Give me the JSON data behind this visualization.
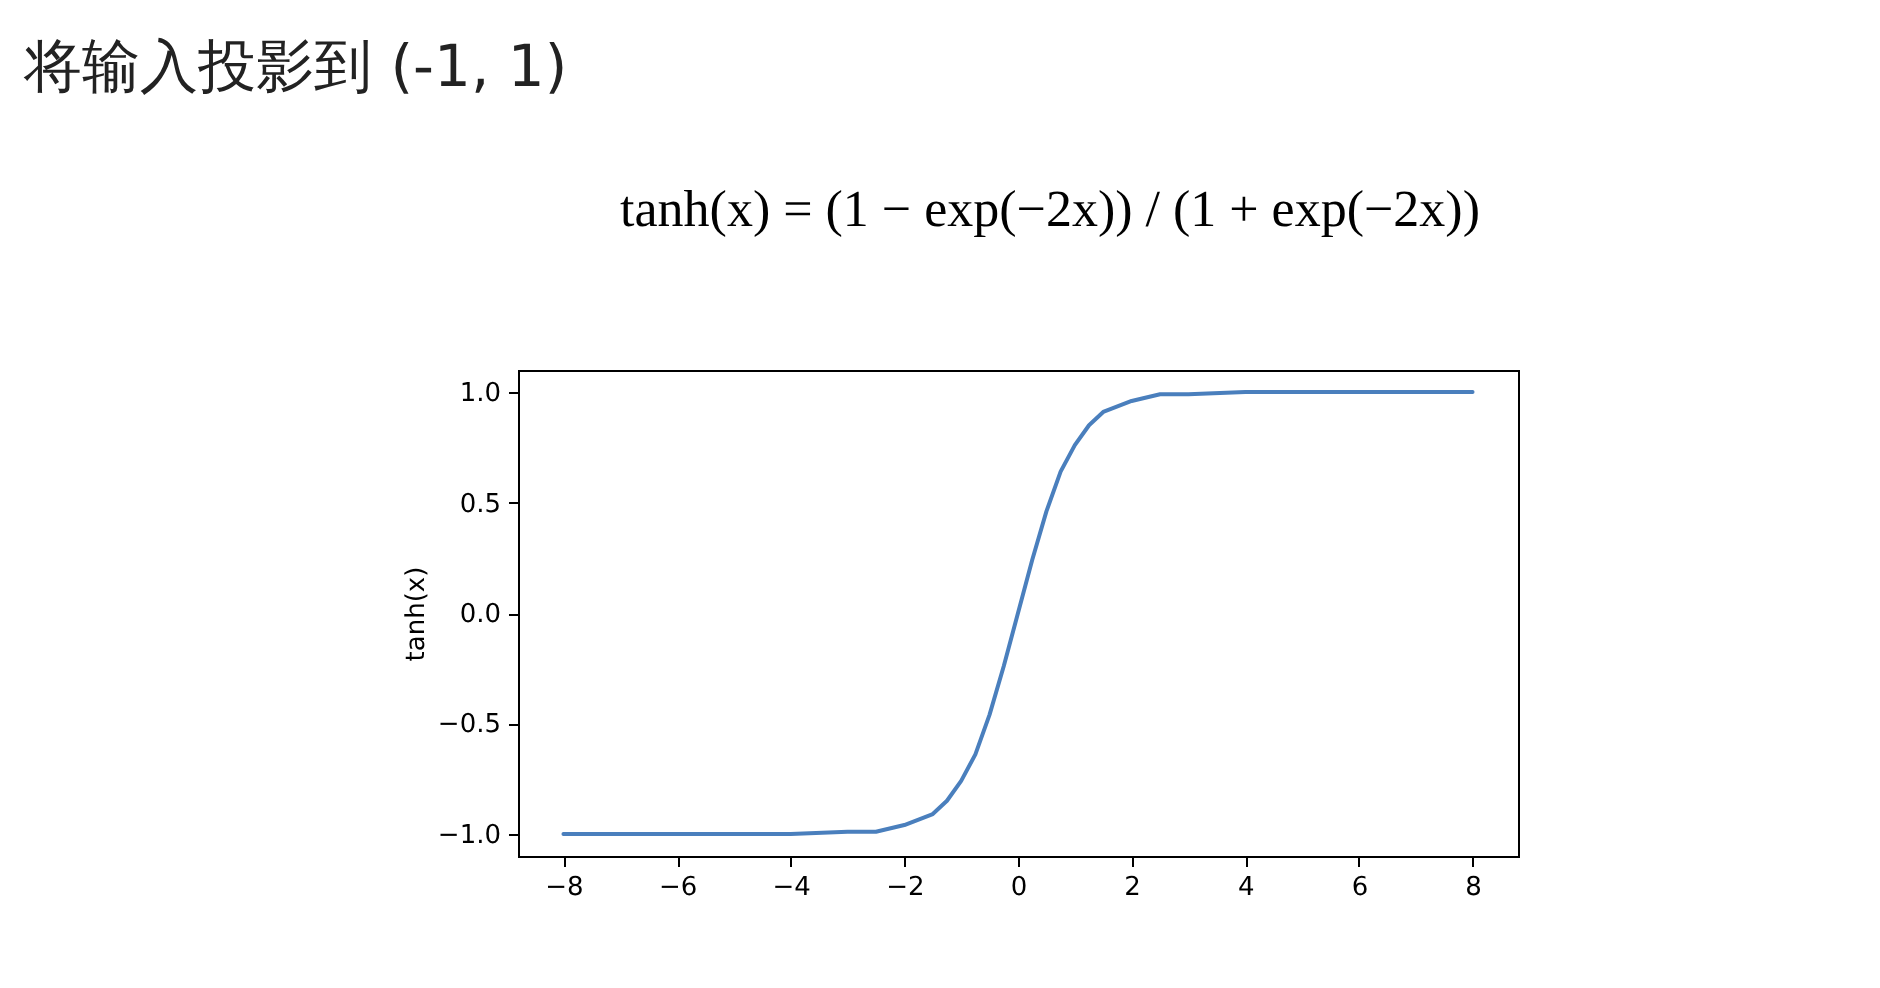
{
  "chart_data": {
    "type": "line",
    "title": "将输入投影到 (-1, 1)",
    "subtitle": "tanh(x) = (1 − exp(−2x)) / (1 + exp(−2x))",
    "ylabel": "tanh(x)",
    "x": [
      -8,
      -6,
      -4,
      -3,
      -2.5,
      -2,
      -1.5,
      -1.25,
      -1,
      -0.75,
      -0.5,
      -0.25,
      0,
      0.25,
      0.5,
      0.75,
      1,
      1.25,
      1.5,
      2,
      2.5,
      3,
      4,
      6,
      8
    ],
    "series": [
      {
        "color": "#4a7fbd",
        "values": [
          -1,
          -1,
          -1,
          -0.99,
          -0.99,
          -0.96,
          -0.91,
          -0.85,
          -0.76,
          -0.64,
          -0.46,
          -0.24,
          0,
          0.24,
          0.46,
          0.64,
          0.76,
          0.85,
          0.91,
          0.96,
          0.99,
          0.99,
          1,
          1,
          1
        ]
      }
    ],
    "xlim": [
      -8.8,
      8.8
    ],
    "xticks": [
      {
        "value": -8,
        "label": "−8"
      },
      {
        "value": -6,
        "label": "−6"
      },
      {
        "value": -4,
        "label": "−4"
      },
      {
        "value": -2,
        "label": "−2"
      },
      0,
      2,
      4,
      6,
      8
    ],
    "ylim": [
      -1.1,
      1.1
    ],
    "yticks": [
      {
        "value": -1,
        "label": "−1.0"
      },
      {
        "value": -0.5,
        "label": "−0.5"
      },
      {
        "value": 0,
        "label": "0.0"
      },
      {
        "value": 0.5,
        "label": "0.5"
      },
      {
        "value": 1,
        "label": "1.0"
      }
    ],
    "grid": false,
    "marker": "none",
    "line_style": "solid"
  }
}
